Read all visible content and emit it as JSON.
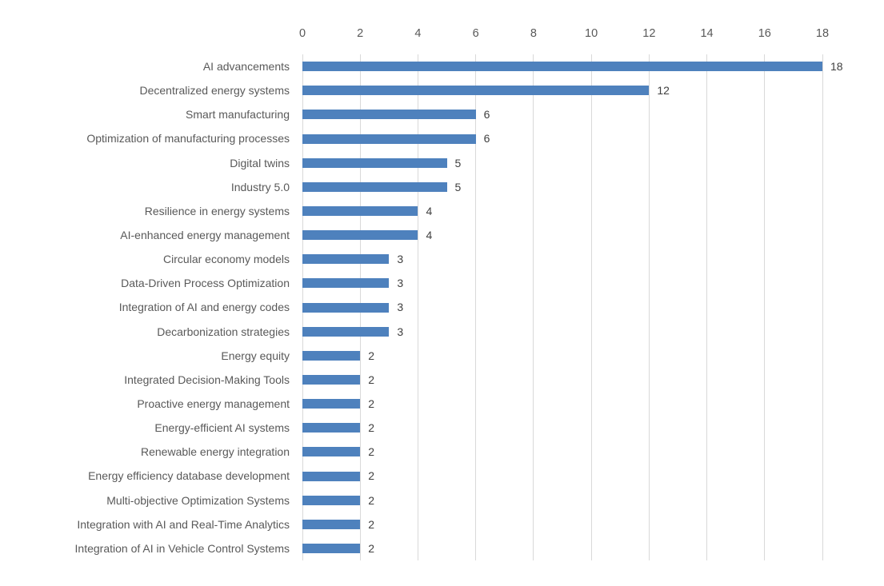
{
  "chart_data": {
    "type": "bar",
    "orientation": "horizontal",
    "title": "",
    "xlabel": "",
    "ylabel": "",
    "categories": [
      "AI advancements",
      "Decentralized energy systems",
      "Smart manufacturing",
      "Optimization of manufacturing processes",
      "Digital twins",
      "Industry 5.0",
      "Resilience in energy systems",
      "AI-enhanced energy management",
      "Circular economy models",
      "Data-Driven Process Optimization",
      "Integration of AI and energy codes",
      "Decarbonization strategies",
      "Energy equity",
      "Integrated Decision-Making Tools",
      "Proactive energy management",
      "Energy-efficient AI systems",
      "Renewable energy integration",
      "Energy efficiency database development",
      "Multi-objective Optimization Systems",
      "Integration with AI and Real-Time Analytics",
      "Integration of AI in Vehicle Control Systems"
    ],
    "values": [
      18,
      12,
      6,
      6,
      5,
      5,
      4,
      4,
      3,
      3,
      3,
      3,
      2,
      2,
      2,
      2,
      2,
      2,
      2,
      2,
      2
    ],
    "data_labels": [
      "18",
      "12",
      "6",
      "6",
      "5",
      "5",
      "4",
      "4",
      "3",
      "3",
      "3",
      "3",
      "2",
      "2",
      "2",
      "2",
      "2",
      "2",
      "2",
      "2",
      "2"
    ],
    "xticks": [
      "0",
      "2",
      "4",
      "6",
      "8",
      "10",
      "12",
      "14",
      "16",
      "18"
    ],
    "xtick_values": [
      0,
      2,
      4,
      6,
      8,
      10,
      12,
      14,
      16,
      18
    ],
    "xlim": [
      0,
      18
    ],
    "grid": "vertical gridlines only",
    "legend": "none",
    "axis_position": "top",
    "colors": {
      "bar": "#4E81BD",
      "gridline": "#D9D9D9",
      "tick_label": "#595959",
      "category_label": "#595959",
      "value_label": "#404040"
    }
  }
}
